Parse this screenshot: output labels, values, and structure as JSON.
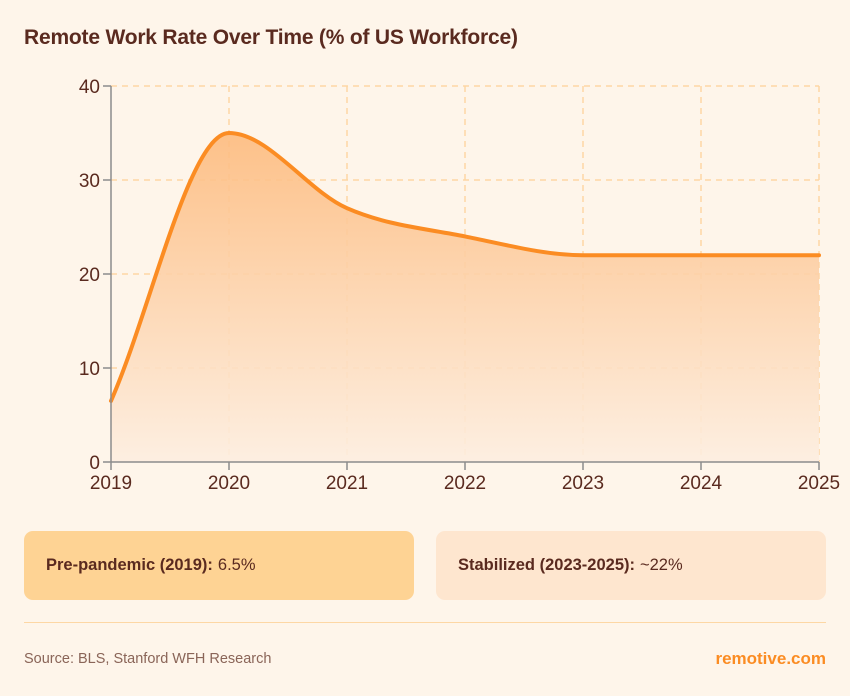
{
  "header": {
    "title": "Remote Work Rate Over Time (% of US Workforce)"
  },
  "colors": {
    "background": "#fef5ea",
    "line": "#fb8c23",
    "fill_top": "#fdbb7e",
    "fill_bottom": "#fdeee0",
    "grid": "#fdd7a4",
    "axis": "#8c8c8c",
    "text": "#5a2a1f",
    "card_pre": "#fed394",
    "card_stab": "#fee6cf",
    "brand": "#fb8c23"
  },
  "chart_data": {
    "type": "area",
    "title": "Remote Work Rate Over Time (% of US Workforce)",
    "xlabel": "",
    "ylabel": "",
    "x": [
      2019,
      2020,
      2021,
      2022,
      2023,
      2024,
      2025
    ],
    "series": [
      {
        "name": "Remote Work Rate (%)",
        "values": [
          6.5,
          35,
          27,
          24,
          22,
          22,
          22
        ]
      }
    ],
    "ylim": [
      0,
      40
    ],
    "yticks": [
      0,
      10,
      20,
      30,
      40
    ],
    "xticks": [
      "2019",
      "2020",
      "2021",
      "2022",
      "2023",
      "2024",
      "2025"
    ],
    "grid": true,
    "legend": "none"
  },
  "cards": {
    "pre": {
      "label": "Pre-pandemic (2019):",
      "value": "6.5%"
    },
    "stab": {
      "label": "Stabilized (2023-2025):",
      "value": "~22%"
    }
  },
  "footer": {
    "source": "Source: BLS, Stanford WFH Research",
    "brand": "remotive.com"
  }
}
